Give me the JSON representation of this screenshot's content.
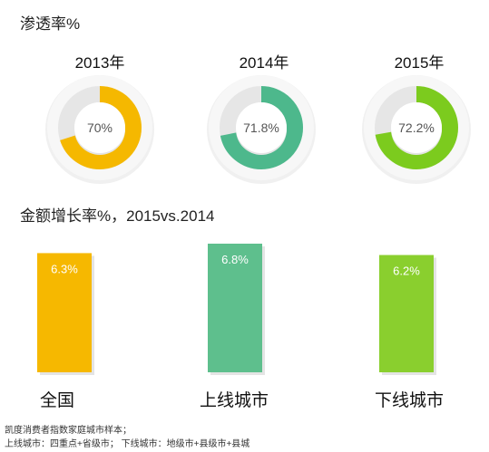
{
  "chart_data": [
    {
      "type": "pie",
      "variant": "donut",
      "title": "渗透率%",
      "categories": [
        "2013年",
        "2014年",
        "2015年"
      ],
      "values": [
        70,
        71.8,
        72.2
      ],
      "value_labels": [
        "70%",
        "71.8%",
        "72.2%"
      ],
      "colors": [
        "#F5B800",
        "#4DB88C",
        "#7CCB1E"
      ],
      "track_color": "#E6E6E6"
    },
    {
      "type": "bar",
      "title": "金额增长率%，2015vs.2014",
      "categories": [
        "全国",
        "上线城市",
        "下线城市"
      ],
      "values": [
        6.3,
        6.8,
        6.2
      ],
      "value_labels": [
        "6.3%",
        "6.8%",
        "6.2%"
      ],
      "colors": [
        "#F6B800",
        "#5EBF8D",
        "#8ACF2E"
      ]
    }
  ],
  "footnote": {
    "line1": "凯度消费者指数家庭城市样本；",
    "line2": "上线城市：四重点+省级市；  下线城市：地级市+县级市+县城"
  }
}
